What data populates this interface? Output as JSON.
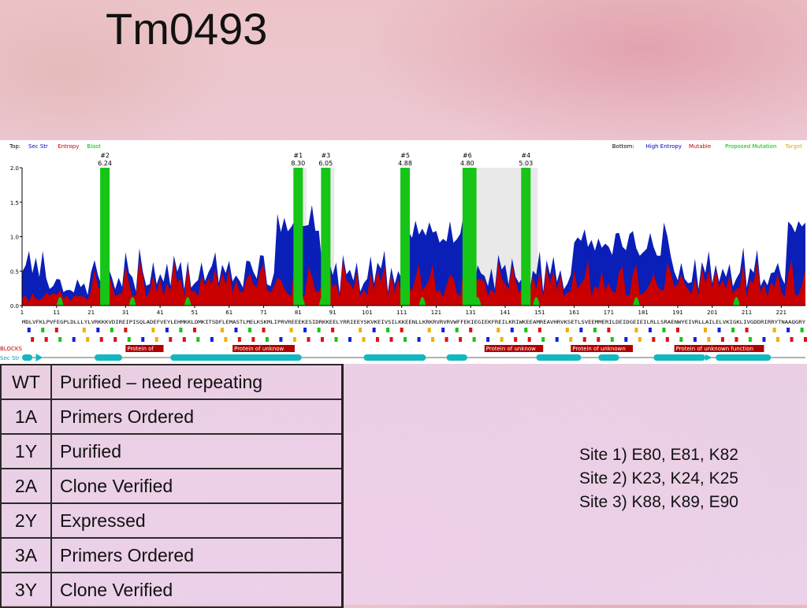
{
  "slide": {
    "title": "Tm0493"
  },
  "figure": {
    "top_legend": {
      "label": "Top:",
      "items": [
        {
          "text": "Sec Str",
          "color": "#0000cc"
        },
        {
          "text": "Entropy",
          "color": "#cc0000"
        },
        {
          "text": "Blast",
          "color": "#00bb00"
        }
      ]
    },
    "bottom_legend": {
      "label": "Bottom:",
      "items": [
        {
          "text": "High Entropy",
          "color": "#0000cc"
        },
        {
          "text": "Mutable",
          "color": "#cc0000"
        },
        {
          "text": "Proposed Mutation",
          "color": "#00bb00"
        },
        {
          "text": "Target",
          "color": "#ddaa00"
        }
      ]
    },
    "y_ticks": [
      "2.0",
      "1.5",
      "1.0",
      "0.5",
      "0.0"
    ],
    "x_ticks": [
      "1",
      "11",
      "21",
      "31",
      "41",
      "51",
      "61",
      "71",
      "81",
      "91",
      "101",
      "111",
      "121",
      "131",
      "141",
      "151",
      "161",
      "171",
      "181",
      "191",
      "201",
      "211",
      "221"
    ],
    "sites": [
      {
        "label": "#2",
        "score": "6.24",
        "center": 25
      },
      {
        "label": "#1",
        "score": "8.30",
        "center": 81
      },
      {
        "label": "#3",
        "score": "6.05",
        "center": 89
      },
      {
        "label": "#5",
        "score": "4.88",
        "center": 112
      },
      {
        "label": "#6",
        "score": "4.80",
        "center": 130
      },
      {
        "label": "#4",
        "score": "5.03",
        "center": 147
      }
    ],
    "sequence": "MDLVFKLPVFEGPLDLLLYLVRKKKVDIREIPISQLADEFVEYLEHMKKLDMKITSDFLEMASTLMELKSKMLIPRVREEEKESIDRKKEELYRRIEEYSKVKEIVSILKKEENLLKRKRVRVRVWFFEKIEGIEKFREILKRIWKEEAMREAVHRVKSETLSVEEMMERILDEIDGEIEILRLLSRAENWYEIVRLLAILELVKIGKLIVGDDRIRRYTNAAQGRY",
    "blocks_label": "BLOCKS",
    "sec_label": "Sec Str",
    "blocks": [
      {
        "text": "Protein of",
        "start": 31,
        "end": 42
      },
      {
        "text": "Protein of unknow",
        "start": 62,
        "end": 80
      },
      {
        "text": "Protein of unknow",
        "start": 135,
        "end": 152
      },
      {
        "text": "Protein of unknown",
        "start": 160,
        "end": 178
      },
      {
        "text": "Protein of unknown function",
        "start": 190,
        "end": 216
      }
    ]
  },
  "status_table": {
    "rows": [
      {
        "site": "WT",
        "status": "Purified – need repeating"
      },
      {
        "site": "1A",
        "status": "Primers Ordered"
      },
      {
        "site": "1Y",
        "status": "Purified"
      },
      {
        "site": "2A",
        "status": "Clone Verified"
      },
      {
        "site": "2Y",
        "status": "Expressed"
      },
      {
        "site": "3A",
        "status": "Primers Ordered"
      },
      {
        "site": "3Y",
        "status": "Clone Verified"
      }
    ]
  },
  "site_notes": [
    "Site 1) E80, E81, K82",
    "Site 2) K23, K24, K25",
    "Site 3) K88, K89, E90"
  ]
}
